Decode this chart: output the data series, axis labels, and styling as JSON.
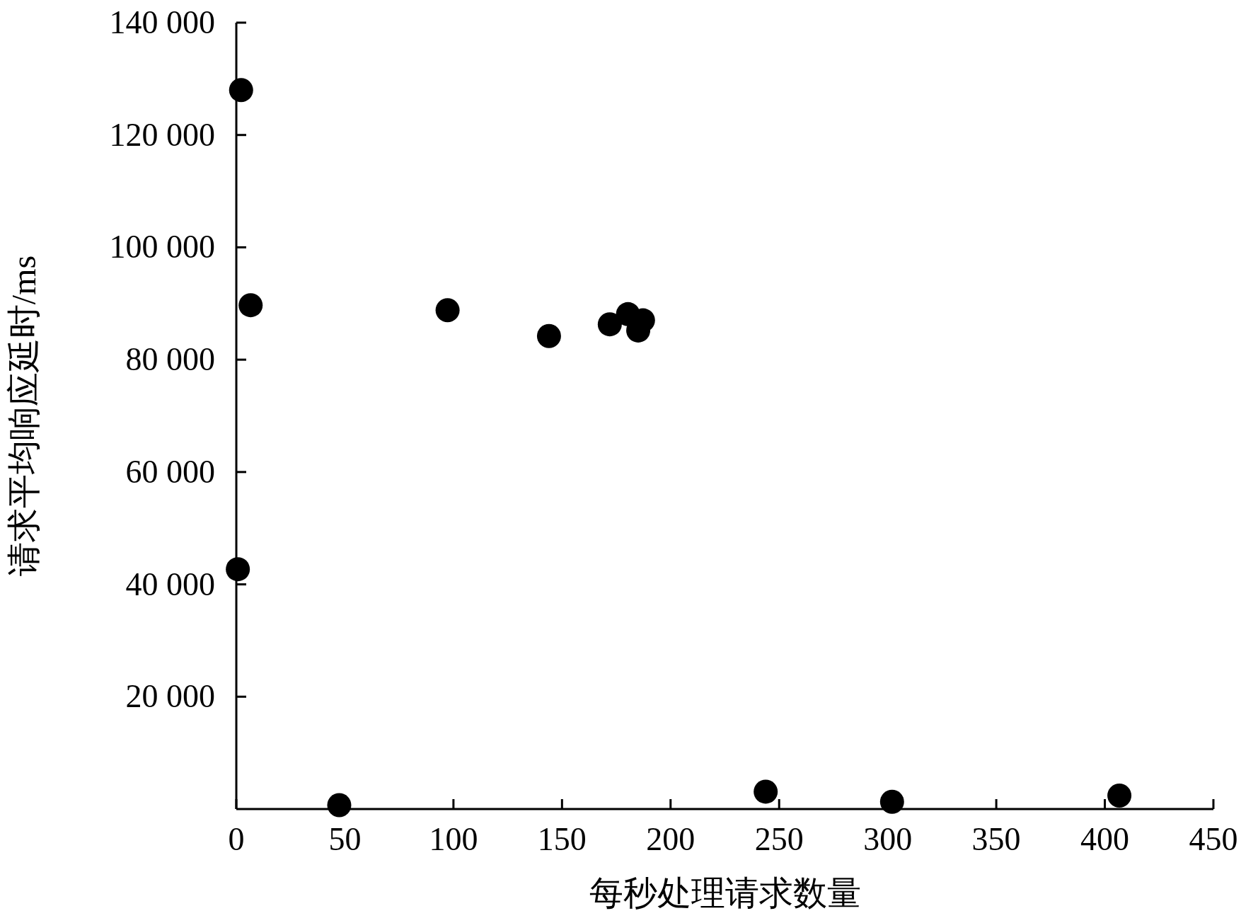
{
  "chart_data": {
    "type": "scatter",
    "xlabel": "每秒处理请求数量",
    "ylabel": "请求平均响应延时/ms",
    "x": [
      2.2,
      6.6,
      0.7,
      47.4,
      97.3,
      144,
      172,
      180.4,
      187.3,
      185.1,
      243.8,
      302,
      406.7
    ],
    "series": [
      {
        "color": "#000000",
        "values": [
          128000,
          89700,
          42700,
          700,
          88800,
          84200,
          86300,
          88100,
          87000,
          85200,
          3100,
          1300,
          2400
        ]
      }
    ],
    "xlim": [
      0,
      450
    ],
    "ylim": [
      0,
      140000
    ],
    "xticks": [
      0,
      50,
      100,
      150,
      200,
      250,
      300,
      350,
      400,
      450
    ],
    "yticks": [
      {
        "value": 20000,
        "label": "20 000"
      },
      {
        "value": 40000,
        "label": "40 000"
      },
      {
        "value": 60000,
        "label": "60 000"
      },
      {
        "value": 80000,
        "label": "80 000"
      },
      {
        "value": 100000,
        "label": "100 000"
      },
      {
        "value": 120000,
        "label": "120 000"
      },
      {
        "value": 140000,
        "label": "140 000"
      }
    ],
    "marker": "circle",
    "grid": false
  }
}
